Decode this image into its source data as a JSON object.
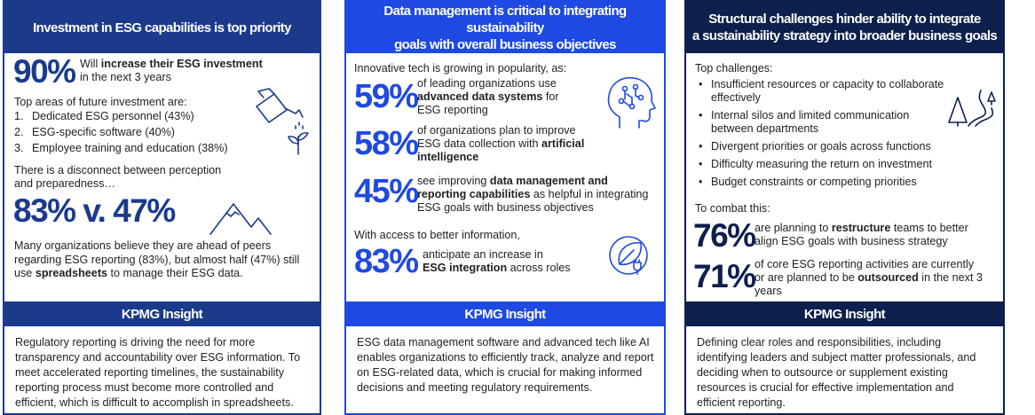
{
  "panel1": {
    "header": [
      "Investment in ESG capabilities is top priority"
    ],
    "stat1": {
      "value": "90%",
      "text_pre": "Will ",
      "text_bold": "increase their ESG investment",
      "text_post": "in the next 3 years"
    },
    "areas_intro": "Top areas of future investment are:",
    "areas": [
      {
        "num": "1.",
        "label": "Dedicated ESG personnel (43%)"
      },
      {
        "num": "2.",
        "label": "ESG-specific software (40%)"
      },
      {
        "num": "3.",
        "label": "Employee training and education (38%)"
      }
    ],
    "disconnect_line1": "There is a disconnect between perception",
    "disconnect_line2": "and preparedness…",
    "stat2": "83% v. 47%",
    "summary_line1": "Many organizations believe they are ahead of peers",
    "summary_line2": "regarding ESG reporting (83%), but almost half (47%) still",
    "summary_pre": "use ",
    "summary_bold": "spreadsheets",
    "summary_post": " to manage their ESG data.",
    "insight_title": "KPMG Insight",
    "insight_text": "Regulatory reporting is driving the need for more transparency and accountability over ESG information. To meet accelerated reporting timelines, the sustainability reporting process must become more controlled and efficient, which is difficult to accomplish in spreadsheets."
  },
  "panel2": {
    "header": [
      "Data management is critical to integrating sustainability",
      "goals with overall business objectives"
    ],
    "intro": "Innovative tech is growing in popularity, as:",
    "stats": [
      {
        "value": "59%",
        "l1": "of leading organizations use",
        "b1": "advanced data systems",
        "p1": " for",
        "l3": "ESG reporting"
      },
      {
        "value": "58%",
        "l1": "of organizations plan to improve",
        "l2pre": "ESG data collection with ",
        "b2": "artificial",
        "b3": "intelligence"
      },
      {
        "value": "45%",
        "pre": "see improving ",
        "b1": "data management and",
        "b2": "reporting capabilities",
        "p2": " as helpful in integrating",
        "l3": "ESG goals with business objectives"
      }
    ],
    "access_intro": "With access to better information,",
    "stat4": {
      "value": "83%",
      "l1": "anticipate an increase in",
      "b": "ESG integration",
      "p": " across roles"
    },
    "insight_title": "KPMG Insight",
    "insight_text": "ESG data management software and advanced tech like AI enables organizations to efficiently track, analyze and report on ESG-related data, which is crucial for making informed decisions and meeting regulatory requirements."
  },
  "panel3": {
    "header": [
      "Structural challenges hinder ability to integrate",
      "a sustainability strategy into broader business goals"
    ],
    "challenges_intro": "Top challenges:",
    "challenges": [
      [
        "Insufficient resources or capacity to collaborate",
        "effectively"
      ],
      [
        "Internal silos and limited communication",
        "between departments"
      ],
      [
        "Divergent priorities or goals across functions"
      ],
      [
        "Difficulty measuring the return on investment"
      ],
      [
        "Budget constraints or competing priorities"
      ]
    ],
    "bullet_char": "•",
    "combat_intro": "To combat this:",
    "stat1": {
      "value": "76%",
      "pre": "are planning to ",
      "b": "restructure",
      "post": " teams to better",
      "l2": "align ESG goals with business strategy"
    },
    "stat2": {
      "value": "71%",
      "l1": "of core ESG reporting activities are currently",
      "pre": "or are planned to be ",
      "b": "outsourced",
      "post": " in the next 3",
      "l3": "years"
    },
    "insight_title": "KPMG Insight",
    "insight_text": "Defining clear roles and responsibilities, including identifying leaders and subject matter professionals, and deciding when to outsource or supplement existing resources is crucial for effective implementation and efficient reporting."
  },
  "colors": {
    "panel1": "#1b3a8c",
    "panel2": "#1e49e2",
    "panel3": "#0c1f4d"
  },
  "icons": [
    "watering-can-icon",
    "mountains-icon",
    "ai-head-icon",
    "leaf-plug-icon",
    "winding-road-icon"
  ]
}
